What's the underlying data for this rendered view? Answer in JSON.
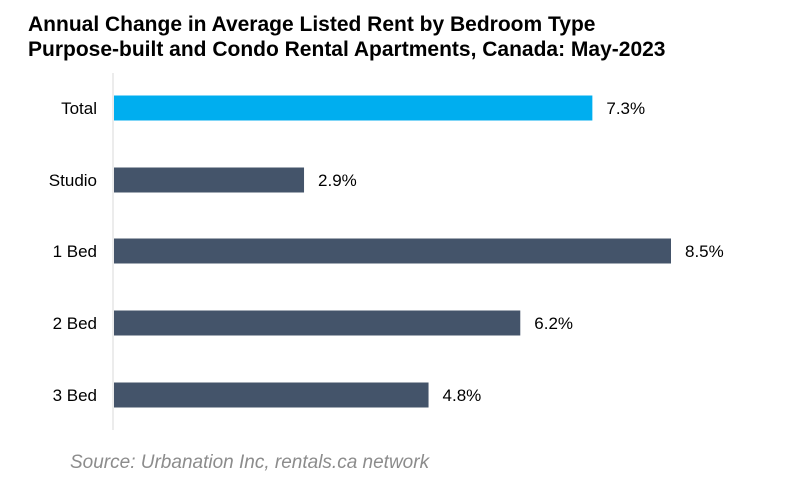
{
  "chart_data": {
    "type": "bar",
    "orientation": "horizontal",
    "title": "Annual Change in Average Listed Rent by Bedroom Type",
    "subtitle": "Purpose-built and Condo Rental Apartments, Canada: May-2023",
    "categories": [
      "Total",
      "Studio",
      "1 Bed",
      "2 Bed",
      "3 Bed"
    ],
    "values": [
      7.3,
      2.9,
      8.5,
      6.2,
      4.8
    ],
    "value_labels": [
      "7.3%",
      "2.9%",
      "8.5%",
      "6.2%",
      "4.8%"
    ],
    "unit": "%",
    "xlim": [
      0,
      8.5
    ],
    "grid": false,
    "legend": "none",
    "colors": {
      "highlight": "#00AEEF",
      "default": "#44546A",
      "axis": "#d9d9d9",
      "label": "#000000"
    },
    "highlight_index": 0
  },
  "footer": {
    "source": "Source: Urbanation Inc, rentals.ca network"
  }
}
